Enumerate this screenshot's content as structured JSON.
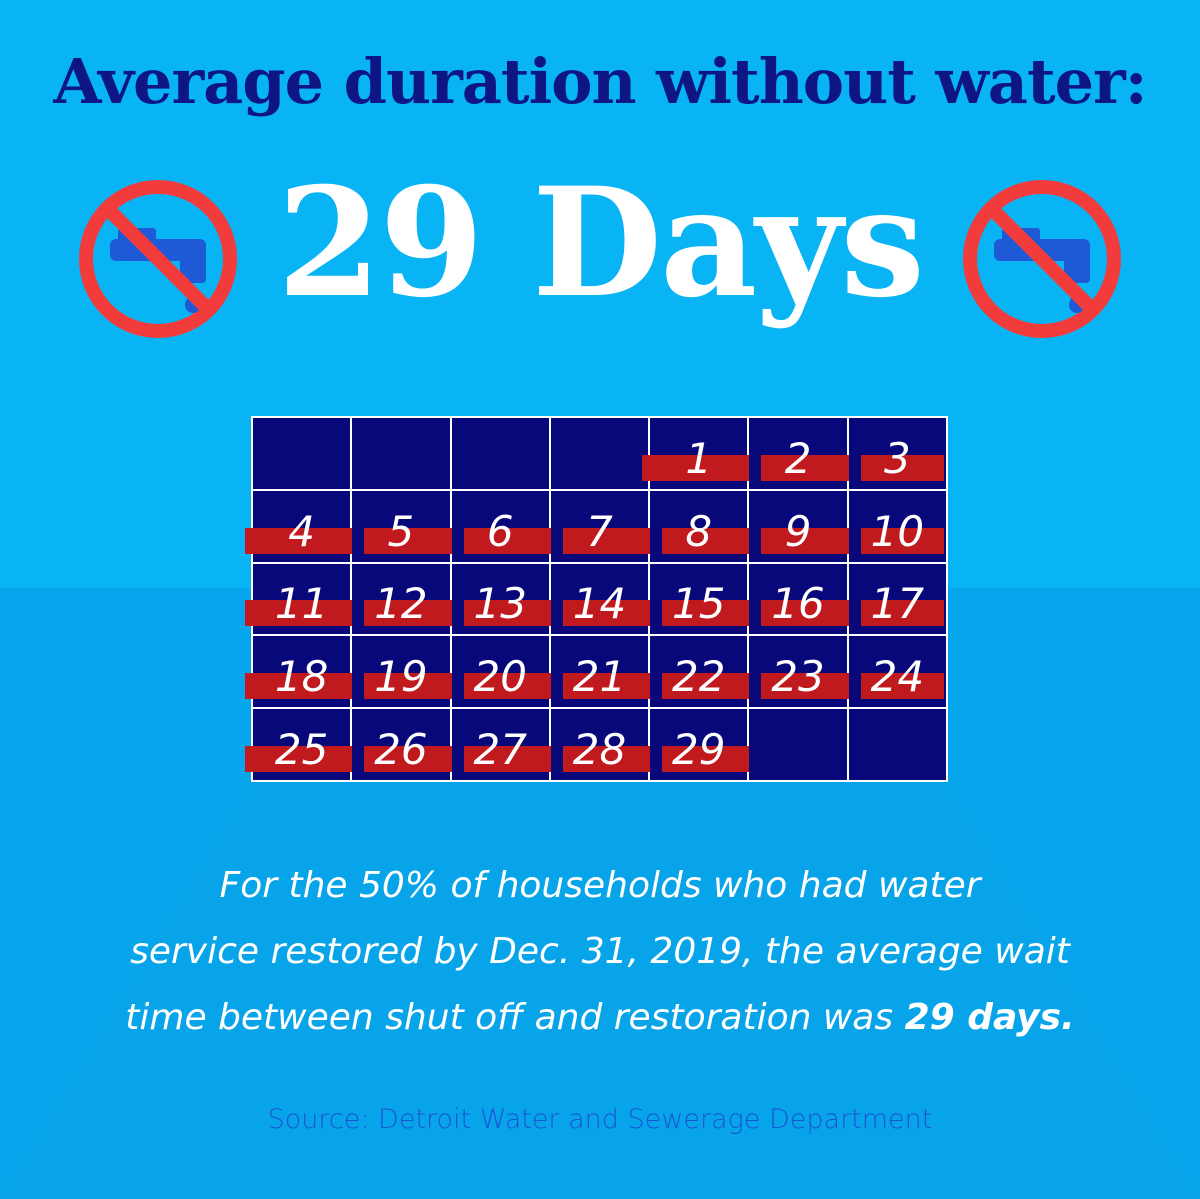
{
  "headline": "Average duration without water:",
  "big_value": "29 Days",
  "icons": {
    "left": "no-water-tap-icon",
    "right": "no-water-tap-icon"
  },
  "calendar": {
    "leading_blanks": 4,
    "days": [
      "1",
      "2",
      "3",
      "4",
      "5",
      "6",
      "7",
      "8",
      "9",
      "10",
      "11",
      "12",
      "13",
      "14",
      "15",
      "16",
      "17",
      "18",
      "19",
      "20",
      "21",
      "22",
      "23",
      "24",
      "25",
      "26",
      "27",
      "28",
      "29"
    ],
    "trailing_blanks": 2,
    "highlighted_days": 29
  },
  "caption": {
    "line1": "For the 50% of households who had water",
    "line2": "service restored by Dec. 31, 2019, the average wait",
    "line3_prefix": "time between shut off and restoration was ",
    "line3_bold": "29 days."
  },
  "source": "Source: Detroit Water and Sewerage Department",
  "colors": {
    "background": "#09b4f5",
    "headline": "#0d1683",
    "calendar_cell": "#08087a",
    "strike": "#c01a1e",
    "prohibit": "#f23c3c",
    "tap": "#1f5ad6"
  }
}
